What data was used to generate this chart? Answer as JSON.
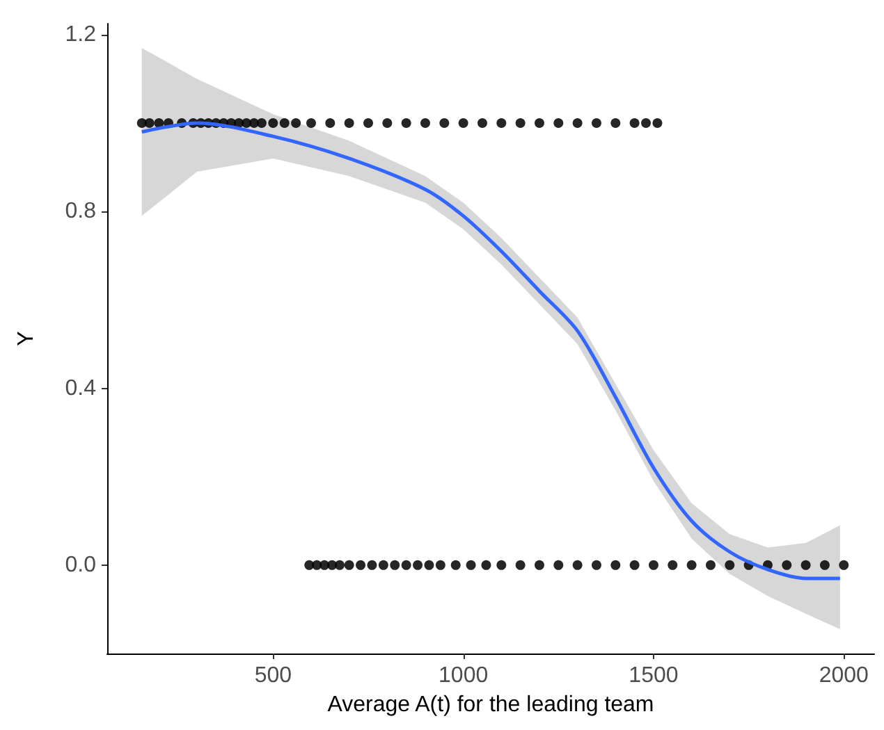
{
  "chart_data": {
    "type": "scatter",
    "xlabel": "Average A(t) for the leading team",
    "ylabel": "Y",
    "xlim": [
      64,
      2080
    ],
    "ylim": [
      -0.2,
      1.225
    ],
    "xticks": [
      500,
      1000,
      1500,
      2000
    ],
    "yticks": [
      {
        "value": 0,
        "label": "0.0"
      },
      0.4,
      0.8,
      1.2
    ],
    "grid": false,
    "marker": "circle",
    "series": [
      {
        "color": "#000000",
        "x": [
          155,
          175,
          200,
          225,
          260,
          290,
          310,
          330,
          350,
          370,
          390,
          410,
          430,
          450,
          470,
          500,
          530,
          560,
          600,
          650,
          700,
          750,
          800,
          850,
          900,
          950,
          1000,
          1050,
          1100,
          1150,
          1200,
          1250,
          1300,
          1350,
          1400,
          1450,
          1480,
          1510
        ],
        "values": [
          1,
          1,
          1,
          1,
          1,
          1,
          1,
          1,
          1,
          1,
          1,
          1,
          1,
          1,
          1,
          1,
          1,
          1,
          1,
          1,
          1,
          1,
          1,
          1,
          1,
          1,
          1,
          1,
          1,
          1,
          1,
          1,
          1,
          1,
          1,
          1,
          1,
          1
        ]
      },
      {
        "color": "#000000",
        "x": [
          595,
          615,
          635,
          655,
          675,
          700,
          730,
          760,
          790,
          820,
          850,
          880,
          910,
          940,
          980,
          1020,
          1060,
          1100,
          1150,
          1200,
          1250,
          1300,
          1350,
          1400,
          1450,
          1500,
          1550,
          1600,
          1650,
          1700,
          1750,
          1800,
          1850,
          1900,
          1950,
          2000
        ],
        "values": [
          0,
          0,
          0,
          0,
          0,
          0,
          0,
          0,
          0,
          0,
          0,
          0,
          0,
          0,
          0,
          0,
          0,
          0,
          0,
          0,
          0,
          0,
          0,
          0,
          0,
          0,
          0,
          0,
          0,
          0,
          0,
          0,
          0,
          0,
          0,
          0
        ]
      },
      {
        "type": "line",
        "color": "#3366ff",
        "marker": "none",
        "x": [
          155,
          300,
          500,
          700,
          900,
          1000,
          1100,
          1200,
          1300,
          1400,
          1500,
          1600,
          1700,
          1800,
          1900,
          1990
        ],
        "values": [
          0.98,
          1.0,
          0.97,
          0.92,
          0.85,
          0.79,
          0.71,
          0.62,
          0.53,
          0.38,
          0.22,
          0.1,
          0.03,
          -0.01,
          -0.03,
          -0.03
        ],
        "lower": [
          0.79,
          0.89,
          0.92,
          0.88,
          0.82,
          0.76,
          0.68,
          0.59,
          0.5,
          0.35,
          0.19,
          0.06,
          -0.02,
          -0.07,
          -0.11,
          -0.145
        ],
        "upper": [
          1.17,
          1.1,
          1.02,
          0.96,
          0.88,
          0.82,
          0.74,
          0.65,
          0.56,
          0.41,
          0.26,
          0.14,
          0.07,
          0.04,
          0.05,
          0.09
        ]
      }
    ]
  }
}
